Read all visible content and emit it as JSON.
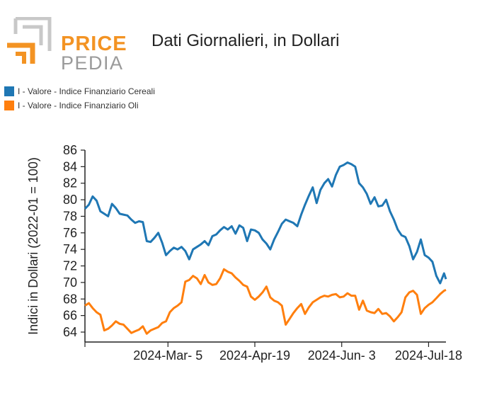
{
  "brand": {
    "word1": "PRICE",
    "word2": "PEDIA",
    "orange": "#f39323",
    "gray": "#9a9a9a",
    "lightgray": "#c8c8c8"
  },
  "page": {
    "title": "Dati Giornalieri, in Dollari"
  },
  "legend": [
    {
      "label": "I - Valore - Indice Finanziario Cereali",
      "color": "#1f77b4"
    },
    {
      "label": "I - Valore - Indice Finanziario Oli",
      "color": "#ff7f0e"
    }
  ],
  "chart_data": {
    "type": "line",
    "title": "Dati Giornalieri, in Dollari",
    "ylabel": "Indici in Dollari (2022-01 = 100)",
    "xlabel": "",
    "ylim": [
      62,
      86
    ],
    "yticks": [
      64,
      66,
      68,
      70,
      72,
      74,
      76,
      78,
      80,
      82,
      84,
      86
    ],
    "xlim": [
      "2024-01-22",
      "2024-07-18"
    ],
    "xtick_dates": [
      "2024-01-22",
      "2024-03-05",
      "2024-04-19",
      "2024-06-03",
      "2024-07-18"
    ],
    "xtick_labels": [
      "",
      "2024-Mar- 5",
      "2024-Apr-19",
      "2024-Jun- 3",
      "2024-Jul-18"
    ],
    "grid": false,
    "legend_position": "top-left",
    "series": [
      {
        "name": "I - Valore - Indice Finanziario Cereali",
        "color": "#1f77b4",
        "points": [
          [
            "2024-01-22",
            78.9
          ],
          [
            "2024-01-24",
            79.4
          ],
          [
            "2024-01-26",
            80.4
          ],
          [
            "2024-01-28",
            79.9
          ],
          [
            "2024-01-30",
            78.6
          ],
          [
            "2024-02-01",
            78.3
          ],
          [
            "2024-02-03",
            78.0
          ],
          [
            "2024-02-05",
            79.5
          ],
          [
            "2024-02-07",
            79.0
          ],
          [
            "2024-02-09",
            78.3
          ],
          [
            "2024-02-11",
            78.2
          ],
          [
            "2024-02-13",
            78.1
          ],
          [
            "2024-02-15",
            77.6
          ],
          [
            "2024-02-17",
            77.2
          ],
          [
            "2024-02-19",
            77.4
          ],
          [
            "2024-02-21",
            77.3
          ],
          [
            "2024-02-23",
            75.0
          ],
          [
            "2024-02-25",
            74.9
          ],
          [
            "2024-02-27",
            75.4
          ],
          [
            "2024-02-29",
            76.0
          ],
          [
            "2024-03-02",
            74.8
          ],
          [
            "2024-03-04",
            73.3
          ],
          [
            "2024-03-06",
            73.8
          ],
          [
            "2024-03-08",
            74.2
          ],
          [
            "2024-03-10",
            74.0
          ],
          [
            "2024-03-12",
            74.3
          ],
          [
            "2024-03-14",
            73.8
          ],
          [
            "2024-03-16",
            72.8
          ],
          [
            "2024-03-18",
            74.0
          ],
          [
            "2024-03-20",
            74.3
          ],
          [
            "2024-03-22",
            74.6
          ],
          [
            "2024-03-24",
            75.0
          ],
          [
            "2024-03-26",
            74.5
          ],
          [
            "2024-03-28",
            75.6
          ],
          [
            "2024-03-30",
            75.8
          ],
          [
            "2024-04-01",
            76.3
          ],
          [
            "2024-04-03",
            76.7
          ],
          [
            "2024-04-05",
            76.4
          ],
          [
            "2024-04-07",
            76.8
          ],
          [
            "2024-04-09",
            75.9
          ],
          [
            "2024-04-11",
            76.9
          ],
          [
            "2024-04-13",
            76.6
          ],
          [
            "2024-04-15",
            75.0
          ],
          [
            "2024-04-17",
            76.4
          ],
          [
            "2024-04-19",
            76.3
          ],
          [
            "2024-04-21",
            76.0
          ],
          [
            "2024-04-23",
            75.2
          ],
          [
            "2024-04-25",
            74.7
          ],
          [
            "2024-04-27",
            74.0
          ],
          [
            "2024-04-29",
            75.2
          ],
          [
            "2024-05-01",
            76.1
          ],
          [
            "2024-05-03",
            77.1
          ],
          [
            "2024-05-05",
            77.6
          ],
          [
            "2024-05-07",
            77.4
          ],
          [
            "2024-05-09",
            77.2
          ],
          [
            "2024-05-11",
            76.8
          ],
          [
            "2024-05-13",
            78.2
          ],
          [
            "2024-05-15",
            79.4
          ],
          [
            "2024-05-17",
            80.5
          ],
          [
            "2024-05-19",
            81.5
          ],
          [
            "2024-05-21",
            79.6
          ],
          [
            "2024-05-23",
            81.2
          ],
          [
            "2024-05-25",
            82.0
          ],
          [
            "2024-05-27",
            82.5
          ],
          [
            "2024-05-29",
            81.6
          ],
          [
            "2024-05-31",
            83.0
          ],
          [
            "2024-06-02",
            84.0
          ],
          [
            "2024-06-04",
            84.2
          ],
          [
            "2024-06-06",
            84.5
          ],
          [
            "2024-06-08",
            84.3
          ],
          [
            "2024-06-10",
            84.0
          ],
          [
            "2024-06-12",
            82.0
          ],
          [
            "2024-06-14",
            81.5
          ],
          [
            "2024-06-16",
            80.7
          ],
          [
            "2024-06-18",
            79.5
          ],
          [
            "2024-06-20",
            80.3
          ],
          [
            "2024-06-22",
            79.2
          ],
          [
            "2024-06-24",
            79.3
          ],
          [
            "2024-06-26",
            80.0
          ],
          [
            "2024-06-28",
            78.6
          ],
          [
            "2024-06-30",
            77.6
          ],
          [
            "2024-07-02",
            76.4
          ],
          [
            "2024-07-04",
            75.7
          ],
          [
            "2024-07-06",
            75.5
          ],
          [
            "2024-07-08",
            74.4
          ],
          [
            "2024-07-10",
            72.8
          ],
          [
            "2024-07-12",
            73.7
          ],
          [
            "2024-07-14",
            75.2
          ],
          [
            "2024-07-16",
            73.3
          ],
          [
            "2024-07-18",
            73.0
          ],
          [
            "2024-07-20",
            72.5
          ],
          [
            "2024-07-22",
            70.8
          ],
          [
            "2024-07-24",
            69.9
          ],
          [
            "2024-07-26",
            71.1
          ],
          [
            "2024-07-27",
            70.4
          ]
        ]
      },
      {
        "name": "I - Valore - Indice Finanziario Oli",
        "color": "#ff7f0e",
        "points": [
          [
            "2024-01-22",
            67.2
          ],
          [
            "2024-01-24",
            67.5
          ],
          [
            "2024-01-26",
            66.9
          ],
          [
            "2024-01-28",
            66.4
          ],
          [
            "2024-01-30",
            66.1
          ],
          [
            "2024-02-01",
            64.2
          ],
          [
            "2024-02-03",
            64.4
          ],
          [
            "2024-02-05",
            64.8
          ],
          [
            "2024-02-07",
            65.3
          ],
          [
            "2024-02-09",
            65.0
          ],
          [
            "2024-02-11",
            64.9
          ],
          [
            "2024-02-13",
            64.4
          ],
          [
            "2024-02-15",
            63.9
          ],
          [
            "2024-02-17",
            64.1
          ],
          [
            "2024-02-19",
            64.3
          ],
          [
            "2024-02-21",
            64.7
          ],
          [
            "2024-02-23",
            63.8
          ],
          [
            "2024-02-25",
            64.2
          ],
          [
            "2024-02-27",
            64.4
          ],
          [
            "2024-02-29",
            64.6
          ],
          [
            "2024-03-02",
            65.1
          ],
          [
            "2024-03-04",
            65.3
          ],
          [
            "2024-03-06",
            66.4
          ],
          [
            "2024-03-08",
            66.9
          ],
          [
            "2024-03-10",
            67.2
          ],
          [
            "2024-03-12",
            67.6
          ],
          [
            "2024-03-14",
            70.1
          ],
          [
            "2024-03-16",
            70.3
          ],
          [
            "2024-03-18",
            70.8
          ],
          [
            "2024-03-20",
            70.5
          ],
          [
            "2024-03-22",
            69.8
          ],
          [
            "2024-03-24",
            70.9
          ],
          [
            "2024-03-26",
            70.0
          ],
          [
            "2024-03-28",
            69.7
          ],
          [
            "2024-03-30",
            69.8
          ],
          [
            "2024-04-01",
            70.5
          ],
          [
            "2024-04-03",
            71.6
          ],
          [
            "2024-04-05",
            71.3
          ],
          [
            "2024-04-07",
            71.1
          ],
          [
            "2024-04-09",
            70.6
          ],
          [
            "2024-04-11",
            70.2
          ],
          [
            "2024-04-13",
            69.7
          ],
          [
            "2024-04-15",
            69.5
          ],
          [
            "2024-04-17",
            68.3
          ],
          [
            "2024-04-19",
            67.9
          ],
          [
            "2024-04-21",
            68.3
          ],
          [
            "2024-04-23",
            68.8
          ],
          [
            "2024-04-25",
            69.5
          ],
          [
            "2024-04-27",
            68.2
          ],
          [
            "2024-04-29",
            67.8
          ],
          [
            "2024-05-01",
            67.6
          ],
          [
            "2024-05-03",
            67.2
          ],
          [
            "2024-05-05",
            64.9
          ],
          [
            "2024-05-07",
            65.6
          ],
          [
            "2024-05-09",
            66.3
          ],
          [
            "2024-05-11",
            66.9
          ],
          [
            "2024-05-13",
            67.4
          ],
          [
            "2024-05-15",
            66.2
          ],
          [
            "2024-05-17",
            67.0
          ],
          [
            "2024-05-19",
            67.6
          ],
          [
            "2024-05-21",
            67.9
          ],
          [
            "2024-05-23",
            68.2
          ],
          [
            "2024-05-25",
            68.4
          ],
          [
            "2024-05-27",
            68.3
          ],
          [
            "2024-05-29",
            68.5
          ],
          [
            "2024-05-31",
            68.6
          ],
          [
            "2024-06-02",
            68.2
          ],
          [
            "2024-06-04",
            68.3
          ],
          [
            "2024-06-06",
            68.7
          ],
          [
            "2024-06-08",
            68.4
          ],
          [
            "2024-06-10",
            68.4
          ],
          [
            "2024-06-12",
            66.7
          ],
          [
            "2024-06-14",
            67.8
          ],
          [
            "2024-06-16",
            66.6
          ],
          [
            "2024-06-18",
            66.4
          ],
          [
            "2024-06-20",
            66.3
          ],
          [
            "2024-06-22",
            66.8
          ],
          [
            "2024-06-24",
            66.2
          ],
          [
            "2024-06-26",
            66.3
          ],
          [
            "2024-06-28",
            65.9
          ],
          [
            "2024-06-30",
            65.3
          ],
          [
            "2024-07-02",
            65.8
          ],
          [
            "2024-07-04",
            66.4
          ],
          [
            "2024-07-06",
            68.2
          ],
          [
            "2024-07-08",
            68.8
          ],
          [
            "2024-07-10",
            69.0
          ],
          [
            "2024-07-12",
            68.5
          ],
          [
            "2024-07-14",
            66.2
          ],
          [
            "2024-07-16",
            66.9
          ],
          [
            "2024-07-18",
            67.3
          ],
          [
            "2024-07-20",
            67.6
          ],
          [
            "2024-07-22",
            68.1
          ],
          [
            "2024-07-24",
            68.6
          ],
          [
            "2024-07-26",
            69.0
          ],
          [
            "2024-07-27",
            69.1
          ]
        ]
      }
    ]
  }
}
